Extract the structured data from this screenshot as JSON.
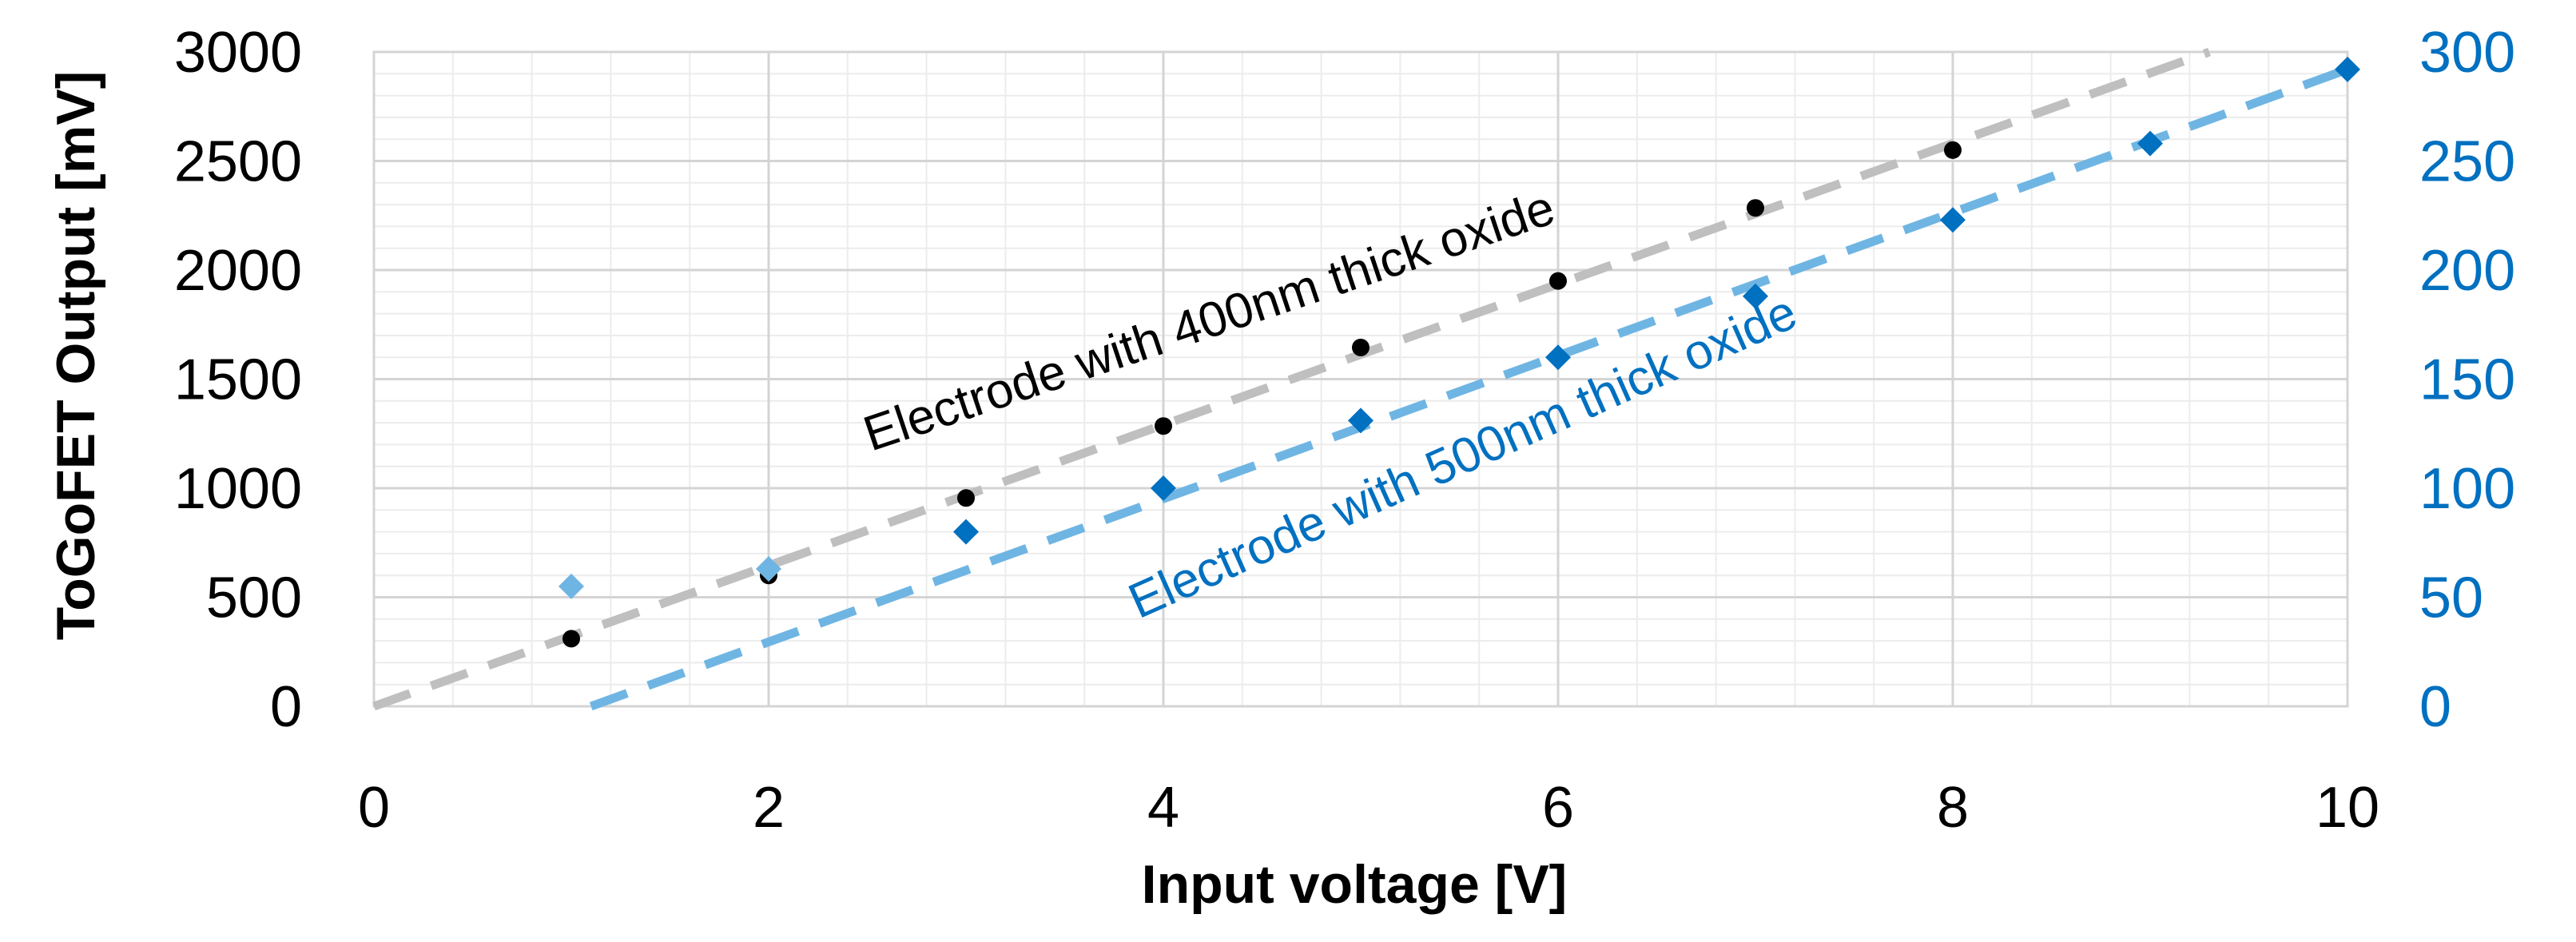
{
  "chart_data": {
    "type": "scatter",
    "xlabel": "Input voltage [V]",
    "ylabel": "ToGoFET Output [mV]",
    "xlim": [
      0,
      10
    ],
    "ylim_left": [
      0,
      3000
    ],
    "ylim_right": [
      0,
      300
    ],
    "x_ticks": [
      "0",
      "2",
      "4",
      "6",
      "8",
      "10"
    ],
    "y_left_ticks": [
      "0",
      "500",
      "1000",
      "1500",
      "2000",
      "2500",
      "3000"
    ],
    "y_right_ticks": [
      "0",
      "50",
      "100",
      "150",
      "200",
      "250",
      "300"
    ],
    "grid": true,
    "colors": {
      "series_400nm": "#000000",
      "trend_400nm": "#bfbfbf",
      "series_500nm": "#0070c0",
      "series_500nm_outlier": "#6fb5e3",
      "trend_500nm": "#6fb5e3",
      "right_axis": "#0070c0"
    },
    "series": [
      {
        "name": "Electrode with 400nm thick oxide",
        "axis": "left",
        "marker": "circle",
        "x": [
          1,
          2,
          3,
          4,
          5,
          6,
          7,
          8
        ],
        "y": [
          310,
          600,
          955,
          1285,
          1645,
          1950,
          2285,
          2550
        ],
        "trendline": {
          "x": [
            0,
            9.3
          ],
          "y": [
            0,
            3000
          ]
        }
      },
      {
        "name": "Electrode with 500nm thick oxide",
        "axis": "right",
        "marker": "diamond",
        "x": [
          1,
          2,
          3,
          4,
          5,
          6,
          7,
          8,
          9,
          10
        ],
        "y": [
          55,
          63,
          80,
          100,
          131,
          160,
          188,
          223,
          258,
          292
        ],
        "outlier_indices": [
          0,
          1
        ],
        "trendline": {
          "x": [
            1.1,
            10
          ],
          "y": [
            0,
            292
          ]
        }
      }
    ],
    "annotations": [
      {
        "text": "Electrode with 400nm thick oxide",
        "series": 0
      },
      {
        "text": "Electrode with 500nm thick oxide",
        "series": 1
      }
    ]
  }
}
